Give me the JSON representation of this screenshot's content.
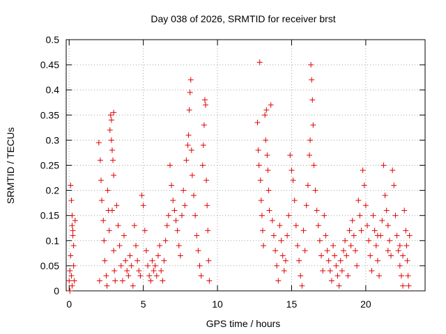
{
  "chart_data": {
    "type": "scatter",
    "title": "Day 038 of 2026, SRMTID for receiver brst",
    "xlabel": "GPS time / hours",
    "ylabel": "SRMTID / TECUs",
    "xlim": [
      -0.2,
      24
    ],
    "ylim": [
      0,
      0.5
    ],
    "x_ticks": [
      0,
      5,
      10,
      15,
      20
    ],
    "y_ticks": [
      0,
      0.05,
      0.1,
      0.15,
      0.2,
      0.25,
      0.3,
      0.35,
      0.4,
      0.45,
      0.5
    ],
    "grid": true,
    "marker": "+",
    "color": "#e00000",
    "series": [
      {
        "name": "SRMTID",
        "points": [
          [
            0.0,
            0.02
          ],
          [
            0.05,
            0.04
          ],
          [
            0.1,
            0.07
          ],
          [
            0.15,
            0.03
          ],
          [
            0.2,
            0.01
          ],
          [
            0.1,
            0.21
          ],
          [
            0.15,
            0.18
          ],
          [
            0.2,
            0.15
          ],
          [
            0.25,
            0.12
          ],
          [
            0.3,
            0.09
          ],
          [
            0.3,
            0.05
          ],
          [
            0.35,
            0.02
          ],
          [
            0.2,
            0.13
          ],
          [
            0.25,
            0.11
          ],
          [
            0.4,
            0.14
          ],
          [
            0.05,
            0.0
          ],
          [
            2.0,
            0.295
          ],
          [
            2.05,
            0.02
          ],
          [
            2.1,
            0.26
          ],
          [
            2.15,
            0.22
          ],
          [
            2.2,
            0.18
          ],
          [
            2.3,
            0.14
          ],
          [
            2.35,
            0.1
          ],
          [
            2.4,
            0.06
          ],
          [
            2.5,
            0.03
          ],
          [
            2.55,
            0.01
          ],
          [
            2.6,
            0.2
          ],
          [
            2.65,
            0.16
          ],
          [
            2.7,
            0.12
          ],
          [
            2.75,
            0.32
          ],
          [
            2.8,
            0.35
          ],
          [
            2.85,
            0.3
          ],
          [
            2.9,
            0.28
          ],
          [
            2.95,
            0.26
          ],
          [
            3.0,
            0.23
          ],
          [
            3.0,
            0.355
          ],
          [
            2.85,
            0.34
          ],
          [
            2.9,
            0.16
          ],
          [
            3.0,
            0.08
          ],
          [
            3.05,
            0.04
          ],
          [
            3.1,
            0.02
          ],
          [
            3.2,
            0.17
          ],
          [
            3.3,
            0.13
          ],
          [
            3.4,
            0.09
          ],
          [
            3.5,
            0.05
          ],
          [
            3.6,
            0.02
          ],
          [
            3.7,
            0.11
          ],
          [
            3.8,
            0.06
          ],
          [
            3.9,
            0.04
          ],
          [
            4.0,
            0.03
          ],
          [
            4.1,
            0.07
          ],
          [
            4.2,
            0.05
          ],
          [
            4.3,
            0.01
          ],
          [
            4.4,
            0.13
          ],
          [
            4.5,
            0.09
          ],
          [
            4.6,
            0.06
          ],
          [
            4.7,
            0.04
          ],
          [
            4.8,
            0.03
          ],
          [
            4.9,
            0.19
          ],
          [
            5.0,
            0.17
          ],
          [
            5.1,
            0.12
          ],
          [
            5.2,
            0.08
          ],
          [
            5.3,
            0.05
          ],
          [
            5.4,
            0.03
          ],
          [
            5.5,
            0.02
          ],
          [
            5.6,
            0.06
          ],
          [
            5.7,
            0.04
          ],
          [
            5.8,
            0.05
          ],
          [
            5.9,
            0.03
          ],
          [
            6.0,
            0.07
          ],
          [
            6.1,
            0.09
          ],
          [
            6.2,
            0.04
          ],
          [
            6.3,
            0.02
          ],
          [
            6.4,
            0.06
          ],
          [
            6.5,
            0.1
          ],
          [
            6.6,
            0.13
          ],
          [
            6.7,
            0.15
          ],
          [
            6.8,
            0.25
          ],
          [
            6.9,
            0.21
          ],
          [
            7.0,
            0.18
          ],
          [
            7.1,
            0.16
          ],
          [
            7.2,
            0.14
          ],
          [
            7.3,
            0.12
          ],
          [
            7.4,
            0.09
          ],
          [
            7.5,
            0.07
          ],
          [
            7.6,
            0.15
          ],
          [
            7.7,
            0.2
          ],
          [
            7.8,
            0.17
          ],
          [
            7.9,
            0.26
          ],
          [
            8.0,
            0.29
          ],
          [
            8.05,
            0.31
          ],
          [
            8.1,
            0.36
          ],
          [
            8.15,
            0.395
          ],
          [
            8.2,
            0.42
          ],
          [
            8.25,
            0.28
          ],
          [
            8.3,
            0.23
          ],
          [
            8.4,
            0.19
          ],
          [
            8.5,
            0.15
          ],
          [
            8.6,
            0.11
          ],
          [
            8.7,
            0.08
          ],
          [
            8.8,
            0.05
          ],
          [
            8.9,
            0.03
          ],
          [
            9.0,
            0.25
          ],
          [
            9.05,
            0.29
          ],
          [
            9.1,
            0.33
          ],
          [
            9.15,
            0.38
          ],
          [
            9.2,
            0.37
          ],
          [
            9.25,
            0.22
          ],
          [
            9.3,
            0.17
          ],
          [
            9.35,
            0.12
          ],
          [
            9.4,
            0.06
          ],
          [
            9.45,
            0.02
          ],
          [
            12.7,
            0.335
          ],
          [
            12.75,
            0.28
          ],
          [
            12.8,
            0.25
          ],
          [
            12.85,
            0.455
          ],
          [
            12.9,
            0.22
          ],
          [
            12.95,
            0.18
          ],
          [
            13.0,
            0.15
          ],
          [
            13.05,
            0.12
          ],
          [
            13.1,
            0.09
          ],
          [
            13.2,
            0.35
          ],
          [
            13.25,
            0.3
          ],
          [
            13.3,
            0.36
          ],
          [
            13.35,
            0.27
          ],
          [
            13.4,
            0.24
          ],
          [
            13.45,
            0.2
          ],
          [
            13.5,
            0.16
          ],
          [
            13.6,
            0.37
          ],
          [
            13.7,
            0.14
          ],
          [
            13.8,
            0.11
          ],
          [
            13.9,
            0.08
          ],
          [
            14.0,
            0.05
          ],
          [
            14.1,
            0.02
          ],
          [
            14.2,
            0.13
          ],
          [
            14.3,
            0.1
          ],
          [
            14.4,
            0.07
          ],
          [
            14.5,
            0.04
          ],
          [
            14.6,
            0.06
          ],
          [
            14.7,
            0.11
          ],
          [
            14.8,
            0.15
          ],
          [
            14.9,
            0.27
          ],
          [
            15.0,
            0.24
          ],
          [
            15.1,
            0.22
          ],
          [
            15.2,
            0.18
          ],
          [
            15.3,
            0.13
          ],
          [
            15.4,
            0.09
          ],
          [
            15.5,
            0.06
          ],
          [
            15.6,
            0.03
          ],
          [
            15.7,
            0.01
          ],
          [
            15.8,
            0.12
          ],
          [
            15.9,
            0.08
          ],
          [
            16.0,
            0.17
          ],
          [
            16.1,
            0.21
          ],
          [
            16.2,
            0.27
          ],
          [
            16.25,
            0.3
          ],
          [
            16.3,
            0.45
          ],
          [
            16.35,
            0.42
          ],
          [
            16.4,
            0.38
          ],
          [
            16.45,
            0.33
          ],
          [
            16.5,
            0.25
          ],
          [
            16.6,
            0.2
          ],
          [
            16.7,
            0.16
          ],
          [
            16.8,
            0.13
          ],
          [
            16.9,
            0.1
          ],
          [
            17.0,
            0.07
          ],
          [
            17.1,
            0.04
          ],
          [
            17.2,
            0.15
          ],
          [
            17.3,
            0.11
          ],
          [
            17.4,
            0.08
          ],
          [
            17.5,
            0.06
          ],
          [
            17.6,
            0.04
          ],
          [
            17.7,
            0.02
          ],
          [
            17.8,
            0.09
          ],
          [
            17.9,
            0.07
          ],
          [
            18.0,
            0.05
          ],
          [
            18.1,
            0.03
          ],
          [
            18.2,
            0.01
          ],
          [
            18.3,
            0.06
          ],
          [
            18.4,
            0.04
          ],
          [
            18.5,
            0.08
          ],
          [
            18.6,
            0.1
          ],
          [
            18.7,
            0.07
          ],
          [
            18.8,
            0.03
          ],
          [
            18.9,
            0.12
          ],
          [
            19.0,
            0.09
          ],
          [
            19.1,
            0.14
          ],
          [
            19.2,
            0.11
          ],
          [
            19.3,
            0.08
          ],
          [
            19.4,
            0.05
          ],
          [
            19.5,
            0.18
          ],
          [
            19.6,
            0.15
          ],
          [
            19.7,
            0.12
          ],
          [
            19.8,
            0.24
          ],
          [
            19.9,
            0.21
          ],
          [
            20.0,
            0.17
          ],
          [
            20.1,
            0.13
          ],
          [
            20.2,
            0.1
          ],
          [
            20.3,
            0.07
          ],
          [
            20.4,
            0.04
          ],
          [
            20.5,
            0.15
          ],
          [
            20.6,
            0.12
          ],
          [
            20.7,
            0.09
          ],
          [
            20.8,
            0.06
          ],
          [
            20.9,
            0.03
          ],
          [
            21.0,
            0.11
          ],
          [
            21.1,
            0.14
          ],
          [
            21.2,
            0.25
          ],
          [
            21.3,
            0.19
          ],
          [
            21.4,
            0.16
          ],
          [
            21.5,
            0.13
          ],
          [
            21.6,
            0.1
          ],
          [
            21.7,
            0.07
          ],
          [
            21.8,
            0.24
          ],
          [
            21.9,
            0.21
          ],
          [
            22.0,
            0.15
          ],
          [
            22.1,
            0.11
          ],
          [
            22.2,
            0.08
          ],
          [
            22.3,
            0.05
          ],
          [
            22.4,
            0.03
          ],
          [
            22.5,
            0.01
          ],
          [
            22.6,
            0.16
          ],
          [
            22.7,
            0.12
          ],
          [
            22.75,
            0.09
          ],
          [
            22.8,
            0.06
          ],
          [
            22.85,
            0.03
          ],
          [
            22.9,
            0.01
          ],
          [
            22.95,
            0.11
          ],
          [
            22.5,
            0.07
          ],
          [
            22.3,
            0.09
          ],
          [
            21.5,
            0.08
          ],
          [
            20.8,
            0.11
          ]
        ]
      }
    ]
  }
}
